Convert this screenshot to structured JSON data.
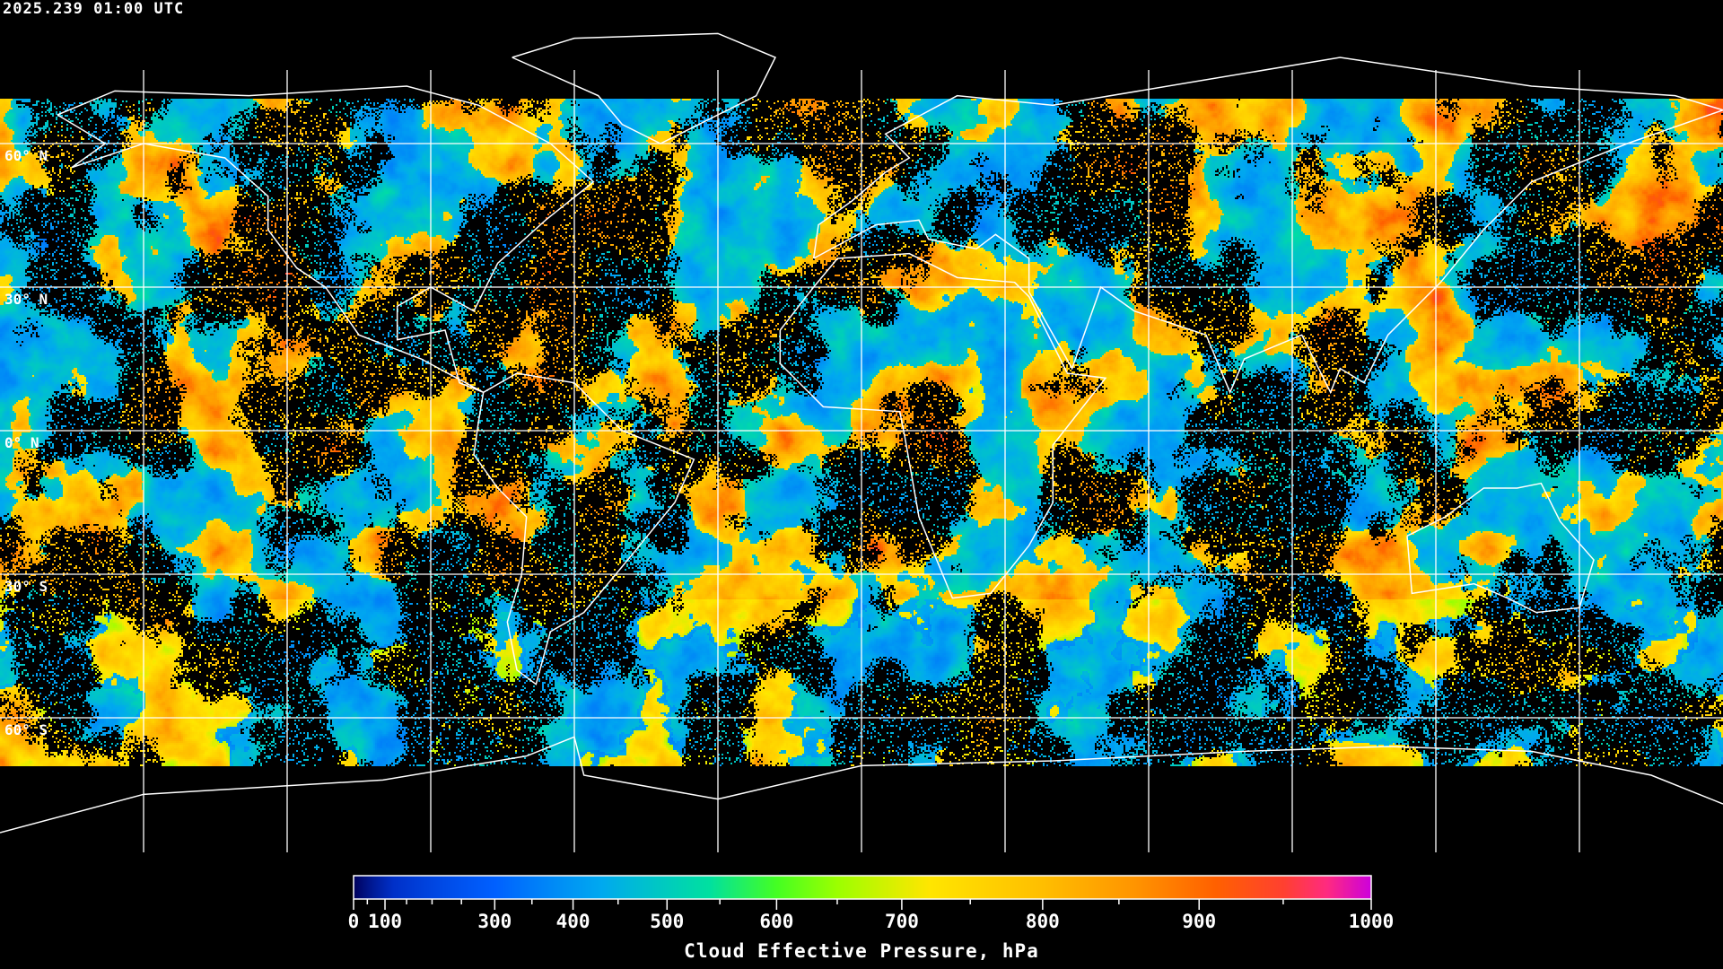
{
  "header": {
    "timestamp": "2025.239 01:00 UTC"
  },
  "map": {
    "projection": "equirectangular",
    "grid_longitudes": [
      -150,
      -120,
      -90,
      -60,
      -30,
      0,
      30,
      60,
      90,
      120,
      150
    ],
    "grid_latitudes": [
      60,
      30,
      0,
      -30,
      -60
    ],
    "lat_labels": [
      {
        "lat": 60,
        "text": "60° N"
      },
      {
        "lat": 30,
        "text": "30° N"
      },
      {
        "lat": 0,
        "text": "0° N"
      },
      {
        "lat": -30,
        "text": "30° S"
      },
      {
        "lat": -60,
        "text": "60° S"
      }
    ],
    "grid_color": "#ffffff",
    "coastline_color": "#ffffff",
    "clear_sky_color": "#000000"
  },
  "colorbar": {
    "title": "Cloud Effective Pressure, hPa",
    "range": [
      0,
      1000
    ],
    "major_ticks": [
      {
        "value": 0,
        "label": "0"
      },
      {
        "value": 100,
        "label": "100"
      },
      {
        "value": 300,
        "label": "300"
      },
      {
        "value": 400,
        "label": "400"
      },
      {
        "value": 500,
        "label": "500"
      },
      {
        "value": 600,
        "label": "600"
      },
      {
        "value": 700,
        "label": "700"
      },
      {
        "value": 800,
        "label": "800"
      },
      {
        "value": 900,
        "label": "900"
      },
      {
        "value": 1000,
        "label": "1000"
      }
    ],
    "minor_ticks": [
      50,
      150,
      200,
      250,
      350,
      450,
      550,
      650,
      750,
      850,
      950
    ],
    "colormap": [
      {
        "p": 0,
        "color": "#00005a"
      },
      {
        "p": 120,
        "color": "#0030c8"
      },
      {
        "p": 300,
        "color": "#0060ff"
      },
      {
        "p": 430,
        "color": "#00a8f0"
      },
      {
        "p": 540,
        "color": "#00e0a0"
      },
      {
        "p": 600,
        "color": "#44ff22"
      },
      {
        "p": 650,
        "color": "#9cff00"
      },
      {
        "p": 720,
        "color": "#ffe600"
      },
      {
        "p": 800,
        "color": "#ffbe00"
      },
      {
        "p": 860,
        "color": "#ff9400"
      },
      {
        "p": 910,
        "color": "#ff6000"
      },
      {
        "p": 950,
        "color": "#ff4030"
      },
      {
        "p": 975,
        "color": "#ff2a80"
      },
      {
        "p": 1000,
        "color": "#cc00dd"
      }
    ]
  }
}
